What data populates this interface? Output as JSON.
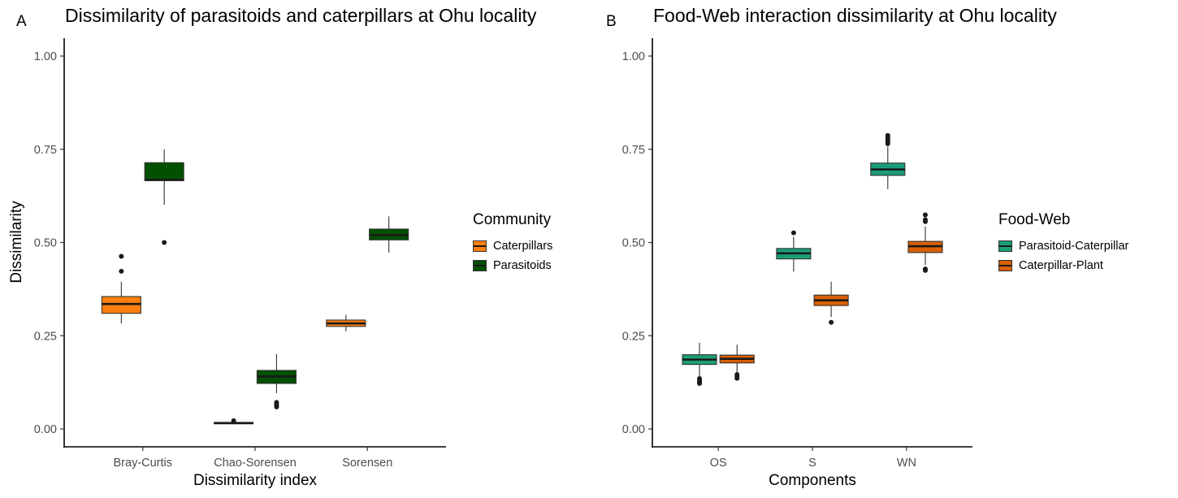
{
  "panels": [
    {
      "letter": "A",
      "title": "Dissimilarity of parasitoids and caterpillars at Ohu locality",
      "legend": {
        "title": "Community",
        "items": [
          {
            "label": "Caterpillars",
            "color": "#FF7F0E"
          },
          {
            "label": "Parasitoids",
            "color": "#005000"
          }
        ]
      }
    },
    {
      "letter": "B",
      "title": "Food-Web interaction dissimilarity at Ohu locality",
      "legend": {
        "title": "Food-Web",
        "items": [
          {
            "label": "Parasitoid-Caterpillar",
            "color": "#1B9E77"
          },
          {
            "label": "Caterpillar-Plant",
            "color": "#D95F02"
          }
        ]
      }
    }
  ],
  "chart_data": [
    {
      "type": "box",
      "title": "Dissimilarity of parasitoids and caterpillars at Ohu locality",
      "xlabel": "Dissimilarity index",
      "ylabel": "Dissimilarity",
      "ylim": [
        0,
        1
      ],
      "yticks": [
        "0.00",
        "0.25",
        "0.50",
        "0.75",
        "1.00"
      ],
      "categories": [
        "Bray-Curtis",
        "Chao-Sorensen",
        "Sorensen"
      ],
      "legend_position": "right",
      "series": [
        {
          "name": "Caterpillars",
          "color": "#FF7F0E",
          "boxes": [
            {
              "min": 0.283,
              "q1": 0.31,
              "median": 0.335,
              "q3": 0.355,
              "max": 0.395,
              "outliers": [
                0.423,
                0.463
              ]
            },
            {
              "min": 0.012,
              "q1": 0.014,
              "median": 0.016,
              "q3": 0.017,
              "max": 0.019,
              "outliers": [
                0.022
              ]
            },
            {
              "min": 0.262,
              "q1": 0.275,
              "median": 0.283,
              "q3": 0.292,
              "max": 0.306,
              "outliers": []
            }
          ]
        },
        {
          "name": "Parasitoids",
          "color": "#005000",
          "boxes": [
            {
              "min": 0.601,
              "q1": 0.666,
              "median": 0.668,
              "q3": 0.714,
              "max": 0.75,
              "outliers": [
                0.5
              ]
            },
            {
              "min": 0.096,
              "q1": 0.122,
              "median": 0.141,
              "q3": 0.157,
              "max": 0.201,
              "outliers": [
                0.059,
                0.062,
                0.066,
                0.071
              ]
            },
            {
              "min": 0.473,
              "q1": 0.507,
              "median": 0.52,
              "q3": 0.536,
              "max": 0.57,
              "outliers": []
            }
          ]
        }
      ]
    },
    {
      "type": "box",
      "title": "Food-Web interaction dissimilarity at Ohu locality",
      "xlabel": "Components",
      "ylabel": "",
      "ylim": [
        0,
        1
      ],
      "yticks": [
        "0.00",
        "0.25",
        "0.50",
        "0.75",
        "1.00"
      ],
      "categories": [
        "OS",
        "S",
        "WN"
      ],
      "legend_position": "right",
      "series": [
        {
          "name": "Parasitoid-Caterpillar",
          "color": "#1B9E77",
          "boxes": [
            {
              "min": 0.14,
              "q1": 0.173,
              "median": 0.186,
              "q3": 0.199,
              "max": 0.231,
              "outliers": [
                0.122,
                0.126,
                0.13,
                0.135
              ]
            },
            {
              "min": 0.422,
              "q1": 0.456,
              "median": 0.471,
              "q3": 0.484,
              "max": 0.515,
              "outliers": [
                0.526
              ]
            },
            {
              "min": 0.643,
              "q1": 0.68,
              "median": 0.696,
              "q3": 0.713,
              "max": 0.757,
              "outliers": [
                0.765,
                0.77,
                0.776,
                0.781,
                0.787
              ]
            }
          ]
        },
        {
          "name": "Caterpillar-Plant",
          "color": "#D95F02",
          "boxes": [
            {
              "min": 0.152,
              "q1": 0.177,
              "median": 0.188,
              "q3": 0.198,
              "max": 0.226,
              "outliers": [
                0.136,
                0.141,
                0.146
              ]
            },
            {
              "min": 0.3,
              "q1": 0.331,
              "median": 0.345,
              "q3": 0.359,
              "max": 0.395,
              "outliers": [
                0.286
              ]
            },
            {
              "min": 0.44,
              "q1": 0.473,
              "median": 0.49,
              "q3": 0.503,
              "max": 0.543,
              "outliers": [
                0.425,
                0.429,
                0.556,
                0.561,
                0.574
              ]
            }
          ]
        }
      ]
    }
  ]
}
